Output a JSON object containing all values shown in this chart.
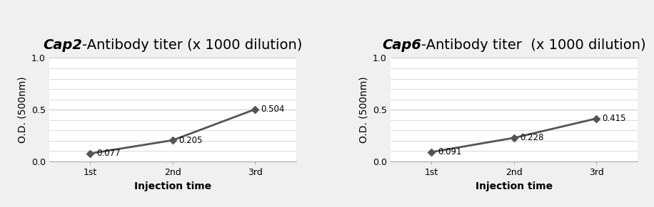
{
  "charts": [
    {
      "title_italic": "Cap2",
      "title_rest": "-Antibody titer (x 1000 dilution)",
      "x_labels": [
        "1st",
        "2nd",
        "3rd"
      ],
      "x_values": [
        1,
        2,
        3
      ],
      "y_values": [
        0.077,
        0.205,
        0.504
      ],
      "y_labels": [
        "0.077",
        "0.205",
        "0.504"
      ],
      "xlabel": "Injection time",
      "ylabel": "O.D. (500nm)",
      "ylim": [
        0.0,
        1.0
      ],
      "yticks": [
        0.0,
        0.5,
        1.0
      ]
    },
    {
      "title_italic": "Cap6",
      "title_rest": "-Antibody titer  (x 1000 dilution)",
      "x_labels": [
        "1st",
        "2nd",
        "3rd"
      ],
      "x_values": [
        1,
        2,
        3
      ],
      "y_values": [
        0.091,
        0.228,
        0.415
      ],
      "y_labels": [
        "0.091",
        "0.228",
        "0.415"
      ],
      "xlabel": "Injection time",
      "ylabel": "O.D. (500nm)",
      "ylim": [
        0.0,
        1.0
      ],
      "yticks": [
        0.0,
        0.5,
        1.0
      ]
    }
  ],
  "line_color": "#555555",
  "marker_color": "#555555",
  "marker_style": "D",
  "marker_size": 5,
  "line_width": 2.0,
  "background_color": "#f0f0f0",
  "plot_bg_color": "#ffffff",
  "grid_color": "#cccccc",
  "annotation_fontsize": 8.5,
  "title_fontsize": 14,
  "axis_label_fontsize": 10,
  "tick_fontsize": 9,
  "panel_bg": "#e8e8e8"
}
